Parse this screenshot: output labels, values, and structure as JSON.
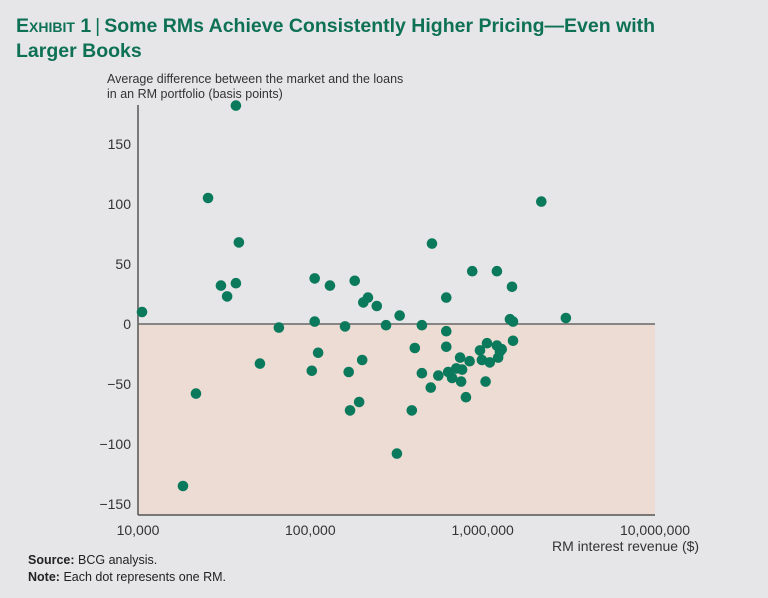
{
  "header": {
    "exhibit": "Exhibit 1",
    "title": "Some RMs Achieve Consistently Higher Pricing—Even with Larger Books"
  },
  "footer": {
    "source_label": "Source:",
    "source_text": "BCG analysis.",
    "note_label": "Note:",
    "note_text": "Each dot represents one RM."
  },
  "colors": {
    "accent": "#0e7154",
    "dot": "#0b7a5c",
    "negative_region": "#eddcd3",
    "background": "#e6e6e8"
  },
  "chart_data": {
    "type": "scatter",
    "title": "Some RMs Achieve Consistently Higher Pricing—Even with Larger Books",
    "xlabel": "RM interest revenue ($)",
    "ylabel": "Average difference between the market and the loans in an RM portfolio (basis points)",
    "xscale": "log",
    "xlim": [
      10000,
      10000000
    ],
    "ylim": [
      -160,
      185
    ],
    "x_ticks": [
      10000,
      100000,
      1000000,
      10000000
    ],
    "x_tick_labels": [
      "10,000",
      "100,000",
      "1,000,000",
      "10,000,000"
    ],
    "y_ticks": [
      150,
      100,
      50,
      0,
      -50,
      -100,
      -150
    ],
    "y_tick_labels": [
      "150",
      "100",
      "50",
      "0",
      "−50",
      "−100",
      "−150"
    ],
    "grid": false,
    "shaded_region": "below zero",
    "points": [
      {
        "x": 10550,
        "y": 10
      },
      {
        "x": 18240,
        "y": -135
      },
      {
        "x": 21700,
        "y": -58
      },
      {
        "x": 25500,
        "y": 105
      },
      {
        "x": 30300,
        "y": 32
      },
      {
        "x": 32900,
        "y": 23
      },
      {
        "x": 37000,
        "y": 34
      },
      {
        "x": 38500,
        "y": 68
      },
      {
        "x": 37000,
        "y": 182
      },
      {
        "x": 51000,
        "y": -33
      },
      {
        "x": 65700,
        "y": -3
      },
      {
        "x": 106000,
        "y": 38
      },
      {
        "x": 106000,
        "y": 2
      },
      {
        "x": 102000,
        "y": -39
      },
      {
        "x": 111000,
        "y": -24
      },
      {
        "x": 130000,
        "y": 32
      },
      {
        "x": 159000,
        "y": -2
      },
      {
        "x": 167000,
        "y": -40
      },
      {
        "x": 170000,
        "y": -72
      },
      {
        "x": 181000,
        "y": 36
      },
      {
        "x": 192000,
        "y": -65
      },
      {
        "x": 200000,
        "y": -30
      },
      {
        "x": 203000,
        "y": 18
      },
      {
        "x": 216000,
        "y": 22
      },
      {
        "x": 243000,
        "y": 15
      },
      {
        "x": 275000,
        "y": -1
      },
      {
        "x": 318000,
        "y": -108
      },
      {
        "x": 330000,
        "y": 7
      },
      {
        "x": 388000,
        "y": -72
      },
      {
        "x": 404000,
        "y": -20
      },
      {
        "x": 444000,
        "y": -1
      },
      {
        "x": 444000,
        "y": -41
      },
      {
        "x": 500000,
        "y": -53
      },
      {
        "x": 508000,
        "y": 67
      },
      {
        "x": 553000,
        "y": -43
      },
      {
        "x": 615000,
        "y": 22
      },
      {
        "x": 615000,
        "y": -6
      },
      {
        "x": 615000,
        "y": -19
      },
      {
        "x": 631000,
        "y": -40
      },
      {
        "x": 665000,
        "y": -45
      },
      {
        "x": 703000,
        "y": -37
      },
      {
        "x": 740000,
        "y": -28
      },
      {
        "x": 750000,
        "y": -48
      },
      {
        "x": 760000,
        "y": -38
      },
      {
        "x": 800000,
        "y": -61
      },
      {
        "x": 840000,
        "y": -31
      },
      {
        "x": 870000,
        "y": 44
      },
      {
        "x": 965000,
        "y": -22
      },
      {
        "x": 990000,
        "y": -30
      },
      {
        "x": 1040000,
        "y": -48
      },
      {
        "x": 1060000,
        "y": -16
      },
      {
        "x": 1100000,
        "y": -32
      },
      {
        "x": 1210000,
        "y": 44
      },
      {
        "x": 1210000,
        "y": -18
      },
      {
        "x": 1260000,
        "y": -23
      },
      {
        "x": 1230000,
        "y": -28
      },
      {
        "x": 1290000,
        "y": -21
      },
      {
        "x": 1440000,
        "y": 4
      },
      {
        "x": 1480000,
        "y": 31
      },
      {
        "x": 1500000,
        "y": 2
      },
      {
        "x": 1500000,
        "y": -14
      },
      {
        "x": 2190000,
        "y": 102
      },
      {
        "x": 3040000,
        "y": 5
      }
    ]
  }
}
